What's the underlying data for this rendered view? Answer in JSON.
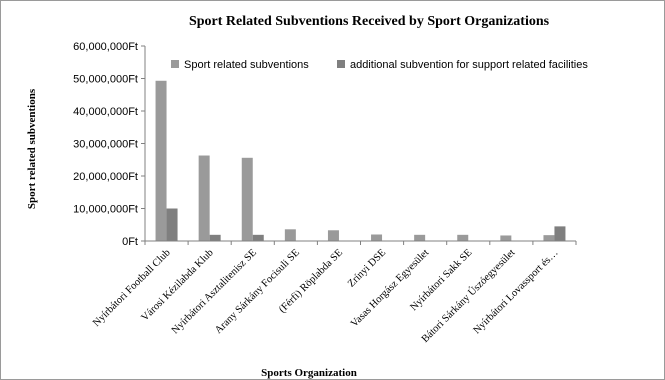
{
  "chart_data": {
    "type": "bar",
    "title": "Sport Related Subventions Received by Sport Organizations",
    "xlabel": "Sports Organization",
    "ylabel": "Sport related subventions",
    "ylim": [
      0,
      60000000
    ],
    "yticks": [
      0,
      10000000,
      20000000,
      30000000,
      40000000,
      50000000,
      60000000
    ],
    "ytick_labels": [
      "0Ft",
      "10,000,000Ft",
      "20,000,000Ft",
      "30,000,000Ft",
      "40,000,000Ft",
      "50,000,000Ft",
      "60,000,000Ft"
    ],
    "grid": false,
    "legend_position": "top-right",
    "categories": [
      "Nyírbátori Football Club",
      "Városi Kézilabda Klub",
      "Nyírbátori Asztalitenisz SE",
      "Arany Sárkány Focisuli SE",
      "(Férfi) Röplabda SE",
      "Zrínyi DSE",
      "Vasas Horgász Egyesület",
      "Nyírbátori Sakk SE",
      "Bátori Sárkány Úszóegyesület",
      "Nyírbátori Lovassport és…"
    ],
    "series": [
      {
        "name": "Sport related subventions",
        "color": "#9a9a9a",
        "values": [
          49300000,
          26300000,
          25600000,
          3600000,
          3300000,
          2000000,
          1900000,
          1900000,
          1700000,
          1800000
        ]
      },
      {
        "name": "additional subvention for support related facilities",
        "color": "#7f7f7f",
        "values": [
          10000000,
          1900000,
          1900000,
          0,
          0,
          0,
          0,
          0,
          0,
          4500000
        ]
      }
    ]
  }
}
